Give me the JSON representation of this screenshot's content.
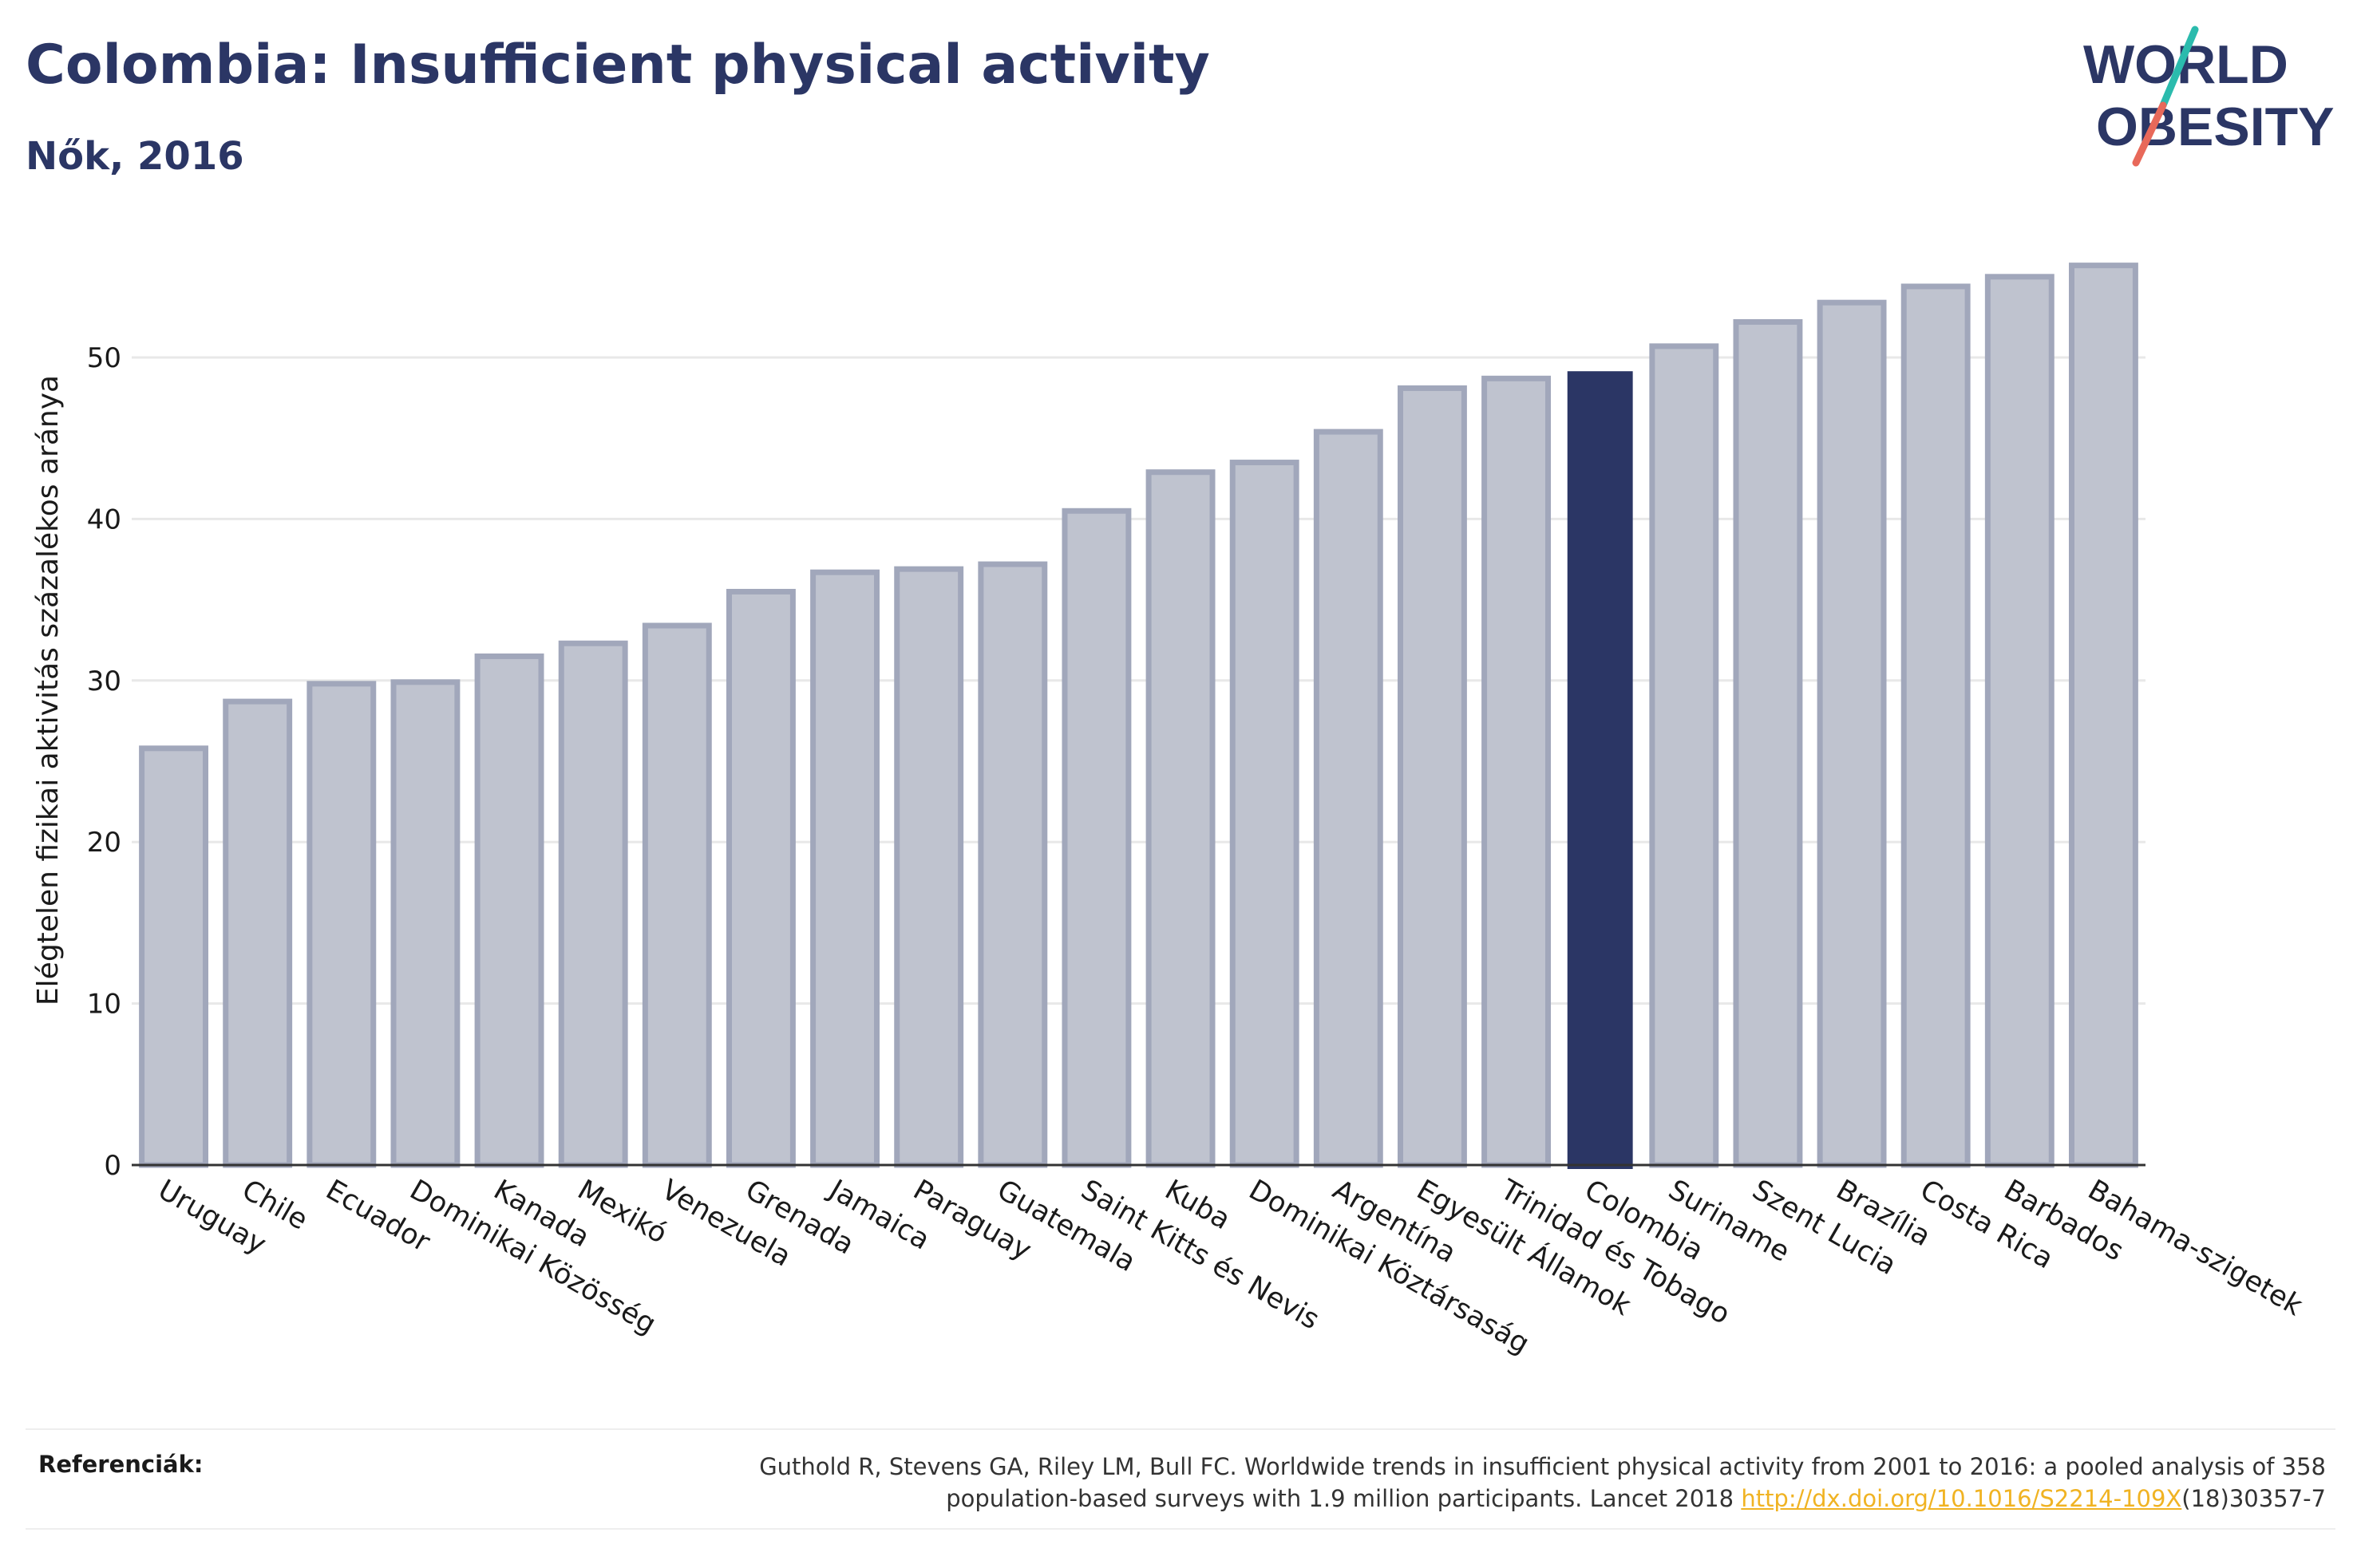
{
  "header": {
    "title": "Colombia: Insufficient physical activity",
    "subtitle": "Nők, 2016"
  },
  "logo": {
    "line1": "WORLD",
    "line2": "OBESITY",
    "text_color": "#2b3665",
    "slash_top_color": "#2bbbad",
    "slash_bottom_color": "#e8695a"
  },
  "colors": {
    "bar_fill": "#bfc3cf",
    "bar_stroke": "#a1a7bb",
    "highlight": "#2b3665",
    "grid": "#e8e8e8",
    "axis": "#333333"
  },
  "chart_data": {
    "type": "bar",
    "ylabel": "Elégtelen fizikai aktivitás százalékos aránya",
    "ylim": [
      0,
      57
    ],
    "yticks": [
      0,
      10,
      20,
      30,
      40,
      50
    ],
    "grid": true,
    "highlight": "Colombia",
    "categories": [
      "Uruguay",
      "Chile",
      "Ecuador",
      "Dominikai Közösség",
      "Kanada",
      "Mexikó",
      "Venezuela",
      "Grenada",
      "Jamaica",
      "Paraguay",
      "Guatemala",
      "Saint Kitts és Nevis",
      "Kuba",
      "Dominikai Köztársaság",
      "Argentína",
      "Egyesült Államok",
      "Trinidad és Tobago",
      "Colombia",
      "Suriname",
      "Szent Lucia",
      "Brazília",
      "Costa Rica",
      "Barbados",
      "Bahama-szigetek"
    ],
    "values": [
      25.8,
      28.7,
      29.8,
      29.9,
      31.5,
      32.3,
      33.4,
      35.5,
      36.7,
      36.9,
      37.2,
      40.5,
      42.9,
      43.5,
      45.4,
      48.1,
      48.7,
      49.1,
      50.7,
      52.2,
      53.4,
      54.4,
      55.0,
      55.7
    ]
  },
  "references": {
    "label": "Referenciák:",
    "line1": "Guthold R, Stevens GA, Riley LM, Bull FC. Worldwide trends in insufficient physical activity from 2001 to 2016: a pooled analysis of 358",
    "line2_prefix": "population-based surveys with 1.9 million participants. Lancet 2018 ",
    "link": "http://dx.doi.org/10.1016/S2214-109X",
    "line2_suffix": "(18)30357-7"
  }
}
